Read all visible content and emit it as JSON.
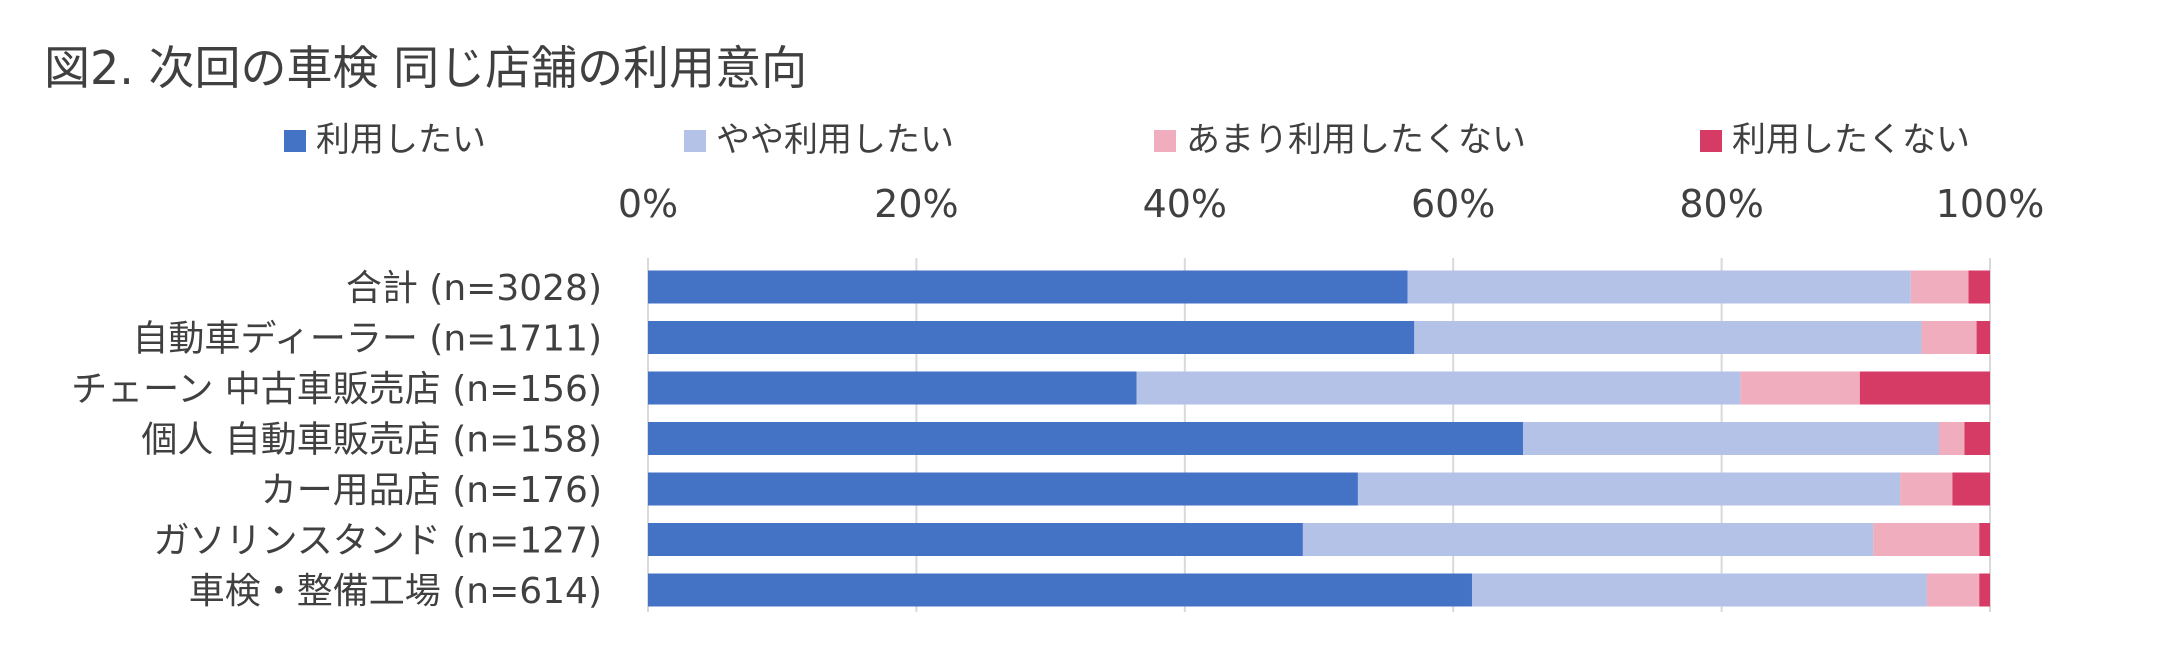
{
  "chart_data": {
    "type": "bar",
    "orientation": "horizontal",
    "stacked": "percent",
    "title": "図2. 次回の車検 同じ店舗の利用意向",
    "xlabel": "",
    "ylabel": "",
    "xlim": [
      0,
      100
    ],
    "x_ticks": [
      0,
      20,
      40,
      60,
      80,
      100
    ],
    "x_tick_labels": [
      "0%",
      "20%",
      "40%",
      "60%",
      "80%",
      "100%"
    ],
    "x_axis_position": "top",
    "grid": "vertical",
    "legend_position": "top",
    "categories": [
      "合計 (n=3028)",
      "自動車ディーラー (n=1711)",
      "チェーン 中古車販売店 (n=156)",
      "個人 自動車販売店 (n=158)",
      "カー用品店 (n=176)",
      "ガソリンスタンド (n=127)",
      "車検・整備工場 (n=614)"
    ],
    "series": [
      {
        "name": "利用したい",
        "color": "#4472C4",
        "values": [
          56.6,
          57.1,
          36.4,
          65.2,
          52.9,
          48.8,
          61.4
        ]
      },
      {
        "name": "やや利用したい",
        "color": "#B4C2E7",
        "values": [
          37.5,
          37.8,
          45.0,
          31.0,
          40.4,
          42.5,
          33.9
        ]
      },
      {
        "name": "あまり利用したくない",
        "color": "#F0ADBE",
        "values": [
          4.3,
          4.1,
          8.9,
          1.9,
          3.9,
          7.9,
          3.9
        ]
      },
      {
        "name": "利用したくない",
        "color": "#D63B65",
        "values": [
          1.6,
          1.0,
          9.7,
          1.9,
          2.8,
          0.8,
          0.8
        ]
      }
    ]
  }
}
